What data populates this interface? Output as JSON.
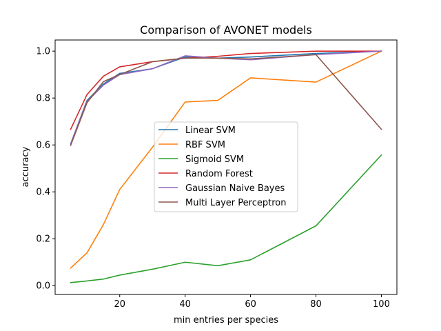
{
  "chart_data": {
    "type": "line",
    "title": "Comparison of AVONET models",
    "xlabel": "min entries per species",
    "ylabel": "accuracy",
    "xlim": [
      0.25,
      104.75
    ],
    "ylim": [
      -0.0375,
      1.0475
    ],
    "xticks": [
      20,
      40,
      60,
      80,
      100
    ],
    "xtick_labels": [
      "20",
      "40",
      "60",
      "80",
      "100"
    ],
    "yticks": [
      0.0,
      0.2,
      0.4,
      0.6,
      0.8,
      1.0
    ],
    "ytick_labels": [
      "0.0",
      "0.2",
      "0.4",
      "0.6",
      "0.8",
      "1.0"
    ],
    "grid": false,
    "legend_position": "center",
    "x": [
      5,
      10,
      15,
      20,
      30,
      40,
      50,
      60,
      80,
      100
    ],
    "series": [
      {
        "name": "Linear SVM",
        "color": "#1f77b4",
        "values": [
          0.605,
          0.79,
          0.86,
          0.905,
          0.925,
          0.975,
          0.97,
          0.975,
          0.99,
          1.0
        ]
      },
      {
        "name": "RBF SVM",
        "color": "#ff7f0e",
        "values": [
          0.075,
          0.14,
          0.26,
          0.41,
          0.59,
          0.783,
          0.79,
          0.886,
          0.868,
          1.0
        ]
      },
      {
        "name": "Sigmoid SVM",
        "color": "#2ca02c",
        "values": [
          0.013,
          0.02,
          0.028,
          0.045,
          0.07,
          0.1,
          0.085,
          0.11,
          0.255,
          0.557
        ]
      },
      {
        "name": "Random Forest",
        "color": "#d62728",
        "values": [
          0.667,
          0.815,
          0.893,
          0.933,
          0.955,
          0.97,
          0.978,
          0.99,
          1.0,
          1.0
        ]
      },
      {
        "name": "Gaussian Naive Bayes",
        "color": "#9467bd",
        "values": [
          0.605,
          0.785,
          0.855,
          0.9,
          0.925,
          0.98,
          0.97,
          0.963,
          0.985,
          1.0
        ]
      },
      {
        "name": "Multi Layer Perceptron",
        "color": "#8c564b",
        "values": [
          0.598,
          0.78,
          0.87,
          0.9,
          0.955,
          0.97,
          0.97,
          0.967,
          0.985,
          0.667
        ]
      }
    ]
  }
}
